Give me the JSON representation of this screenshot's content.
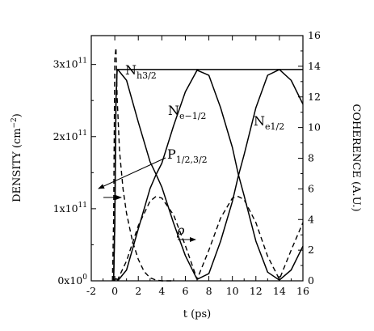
{
  "chart_data": {
    "type": "line",
    "xlabel": "t (ps)",
    "ylabel_left": {
      "main": "DENSITY",
      "unit_open": " (cm",
      "unit_sup": "−2",
      "unit_close": ")"
    },
    "ylabel_right": "COHERENCE (A.U.)",
    "xlim": [
      -2,
      16
    ],
    "ylim_left": [
      0,
      340000000000.0
    ],
    "ylim_right": [
      0,
      16
    ],
    "xticks": [
      -2,
      0,
      2,
      4,
      6,
      8,
      10,
      12,
      14,
      16
    ],
    "xtick_labels": [
      "-2",
      "0",
      "2",
      "4",
      "6",
      "8",
      "10",
      "12",
      "14",
      "16"
    ],
    "yticks_left": [
      0,
      100000000000.0,
      200000000000.0,
      300000000000.0
    ],
    "ytick_labels_left": [
      {
        "base": "0x10",
        "exp": "0"
      },
      {
        "base": "1x10",
        "exp": "11"
      },
      {
        "base": "2x10",
        "exp": "11"
      },
      {
        "base": "3x10",
        "exp": "11"
      }
    ],
    "yticks_right": [
      0,
      2,
      4,
      6,
      8,
      10,
      12,
      14,
      16
    ],
    "ytick_labels_right": [
      "0",
      "2",
      "4",
      "6",
      "8",
      "10",
      "12",
      "14",
      "16"
    ],
    "series": [
      {
        "name": "N_h3/2",
        "axis": "left",
        "style": "solid",
        "x": [
          -0.1,
          0.0,
          0.1,
          0.2,
          0.3,
          16
        ],
        "y": [
          0,
          80000000000.0,
          250000000000.0,
          293000000000.0,
          293000000000.0,
          293000000000.0
        ]
      },
      {
        "name": "N_e-1/2",
        "axis": "left",
        "style": "solid",
        "x": [
          -0.1,
          0.0,
          0.1,
          0.2,
          0.3,
          1,
          2,
          3,
          3.5,
          4,
          5,
          6,
          7,
          8,
          9,
          10,
          10.5,
          11,
          12,
          13,
          14,
          15,
          16
        ],
        "y": [
          0,
          80000000000.0,
          250000000000.0,
          293000000000.0,
          292000000000.0,
          278000000000.0,
          220000000000.0,
          165000000000.0,
          148000000000.0,
          130000000000.0,
          80000000000.0,
          35000000000.0,
          2000000000.0,
          10000000000.0,
          55000000000.0,
          110000000000.0,
          145000000000.0,
          175000000000.0,
          240000000000.0,
          285000000000.0,
          293000000000.0,
          278000000000.0,
          245000000000.0
        ]
      },
      {
        "name": "N_e1/2",
        "axis": "left",
        "style": "solid",
        "x": [
          -0.1,
          0.0,
          0.1,
          0.2,
          0.3,
          1,
          2,
          3,
          3.5,
          4,
          5,
          6,
          7,
          8,
          9,
          10,
          10.5,
          11,
          12,
          13,
          14,
          15,
          16
        ],
        "y": [
          0,
          1000000000.0,
          3000000000.0,
          2000000000.0,
          1000000000.0,
          15000000000.0,
          72000000000.0,
          128000000000.0,
          147000000000.0,
          163000000000.0,
          215000000000.0,
          262000000000.0,
          292000000000.0,
          285000000000.0,
          240000000000.0,
          185000000000.0,
          148000000000.0,
          118000000000.0,
          55000000000.0,
          12000000000.0,
          1000000000.0,
          15000000000.0,
          48000000000.0
        ]
      },
      {
        "name": "P_1/2,3/2",
        "axis": "right",
        "style": "dashed",
        "x": [
          -0.2,
          -0.1,
          0.0,
          0.1,
          0.2,
          0.4,
          0.7,
          1.0,
          1.5,
          2.0,
          2.5,
          3.0,
          3.5,
          4.0,
          5
        ],
        "y": [
          0,
          4.0,
          14.5,
          15.2,
          12.0,
          8.5,
          6.0,
          4.4,
          2.6,
          1.4,
          0.6,
          0.2,
          0.05,
          0.0,
          0.0
        ]
      },
      {
        "name": "rho",
        "axis": "right",
        "style": "dashed",
        "x": [
          0.2,
          1,
          2,
          3,
          3.5,
          4,
          5,
          6,
          7,
          8,
          9,
          10,
          10.5,
          11,
          12,
          13,
          14,
          15,
          16
        ],
        "y": [
          0.0,
          1.3,
          3.6,
          5.2,
          5.5,
          5.4,
          4.3,
          2.3,
          0.1,
          2.0,
          4.1,
          5.4,
          5.5,
          5.3,
          3.8,
          1.6,
          0.1,
          2.0,
          3.8
        ]
      }
    ],
    "annotations": [
      {
        "base": "N",
        "sub": "h3/2"
      },
      {
        "base": "N",
        "sub": "e−1/2"
      },
      {
        "base": "N",
        "sub": "e1/2"
      },
      {
        "base": "P",
        "sub": "1/2,3/2"
      },
      {
        "base": "ρ",
        "sub": ""
      }
    ],
    "grid": false,
    "legend": "none"
  }
}
